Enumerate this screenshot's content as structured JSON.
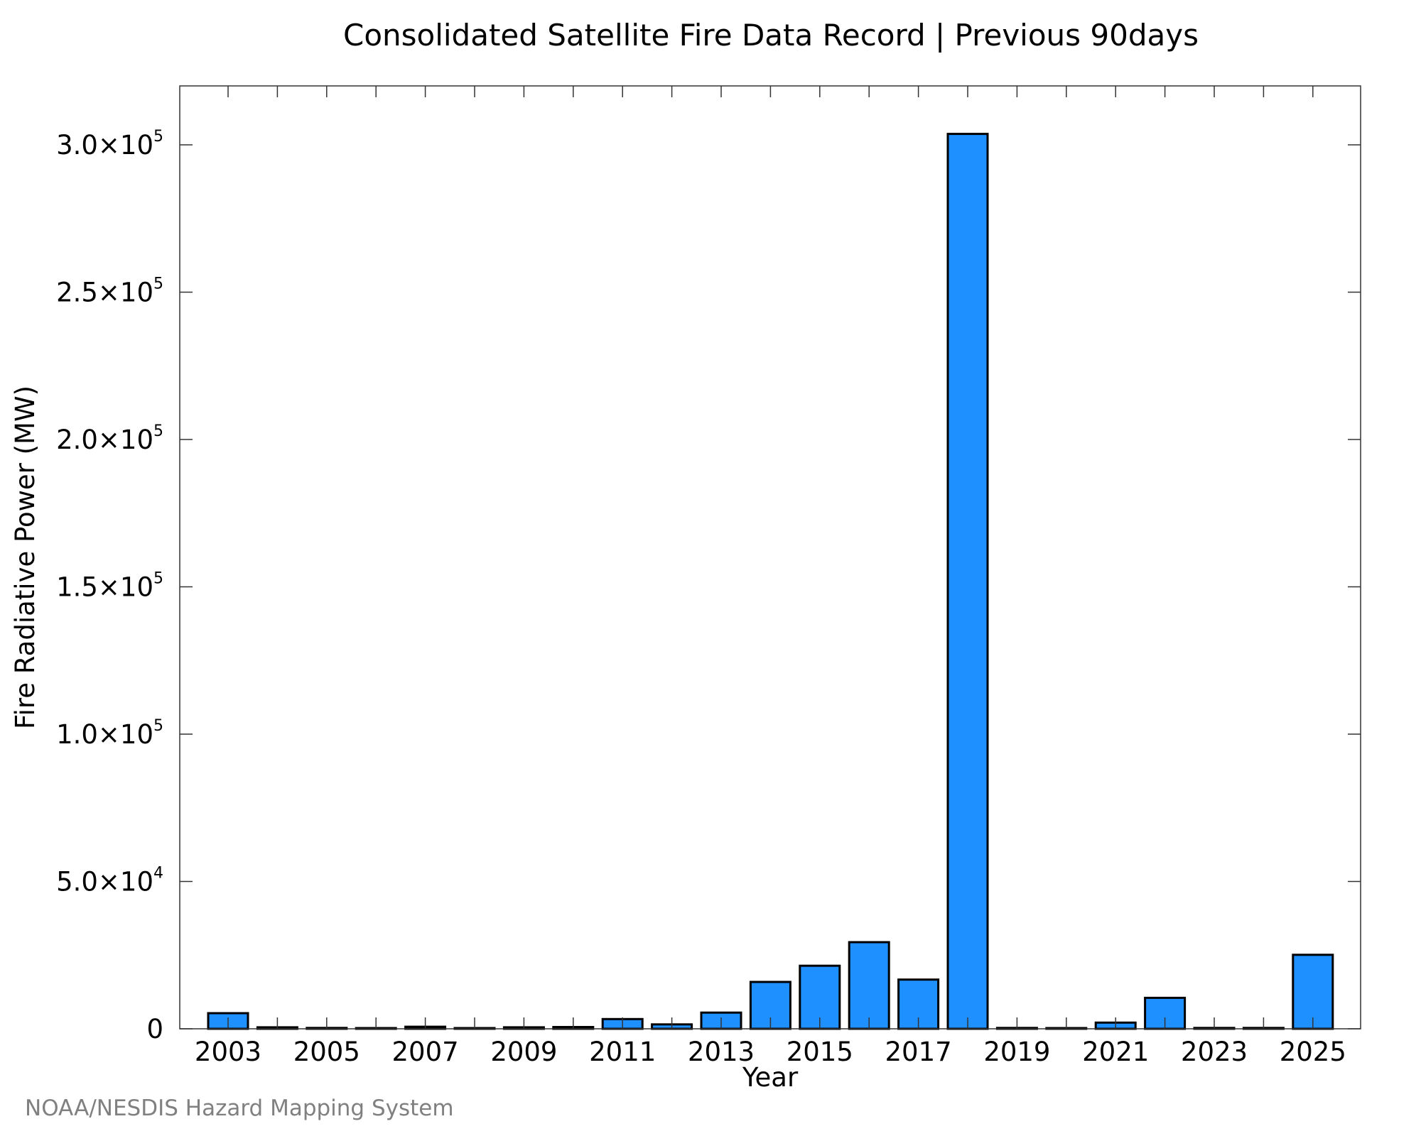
{
  "colors": {
    "bar_fill": "#1e90ff",
    "bar_stroke": "#000000",
    "footer": "#808080"
  },
  "footer": {
    "credit": "NOAA/NESDIS Hazard Mapping System"
  },
  "chart_data": {
    "type": "bar",
    "title": "Consolidated Satellite Fire Data Record | Previous 90days",
    "xlabel": "Year",
    "ylabel": "Fire Radiative Power (MW)",
    "categories": [
      "2003",
      "2004",
      "2005",
      "2006",
      "2007",
      "2008",
      "2009",
      "2010",
      "2011",
      "2012",
      "2013",
      "2014",
      "2015",
      "2016",
      "2017",
      "2018",
      "2019",
      "2020",
      "2021",
      "2022",
      "2023",
      "2024",
      "2025"
    ],
    "x_tick_labels": [
      "2003",
      "2005",
      "2007",
      "2009",
      "2011",
      "2013",
      "2015",
      "2017",
      "2019",
      "2021",
      "2023",
      "2025"
    ],
    "values": [
      5300,
      500,
      300,
      100,
      700,
      100,
      500,
      600,
      3300,
      1500,
      5500,
      15900,
      21400,
      29400,
      16700,
      303700,
      300,
      200,
      2100,
      10500,
      300,
      300,
      25100
    ],
    "ylim": [
      0,
      320000
    ],
    "y_ticks": [
      {
        "value": 0,
        "mantissa": "0",
        "exponent": ""
      },
      {
        "value": 50000,
        "mantissa": "5.0×10",
        "exponent": "4"
      },
      {
        "value": 100000,
        "mantissa": "1.0×10",
        "exponent": "5"
      },
      {
        "value": 150000,
        "mantissa": "1.5×10",
        "exponent": "5"
      },
      {
        "value": 200000,
        "mantissa": "2.0×10",
        "exponent": "5"
      },
      {
        "value": 250000,
        "mantissa": "2.5×10",
        "exponent": "5"
      },
      {
        "value": 300000,
        "mantissa": "3.0×10",
        "exponent": "5"
      }
    ],
    "grid": false,
    "legend": "none"
  }
}
